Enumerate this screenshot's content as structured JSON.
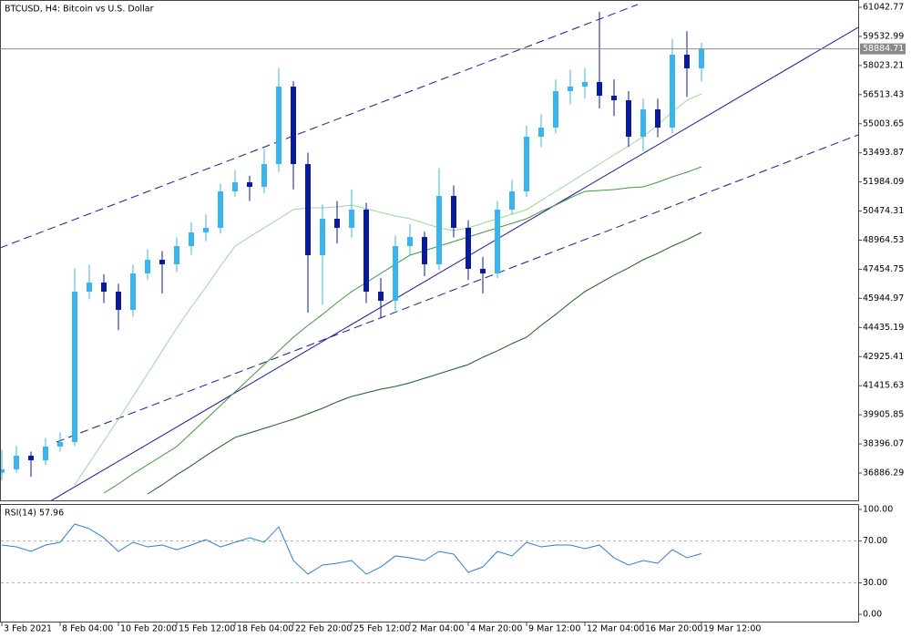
{
  "chart_data": [
    {
      "type": "candlestick",
      "title": "BTCUSD, H4:  Bitcoin vs U.S. Dollar",
      "categories": [
        "3 Feb 2021",
        null,
        null,
        null,
        "8 Feb 04:00",
        null,
        null,
        null,
        "10 Feb 20:00",
        null,
        null,
        null,
        "15 Feb 12:00",
        null,
        null,
        null,
        "18 Feb 04:00",
        null,
        null,
        null,
        "22 Feb 20:00",
        null,
        null,
        null,
        "25 Feb 12:00",
        null,
        null,
        null,
        "2 Mar 04:00",
        null,
        null,
        null,
        "4 Mar 20:00",
        null,
        null,
        null,
        "9 Mar 12:00",
        null,
        null,
        null,
        "12 Mar 04:00",
        null,
        null,
        null,
        "16 Mar 20:00",
        null,
        null,
        null,
        "19 Mar 12:00"
      ],
      "open": [
        36900,
        37077,
        37786,
        37550,
        38259,
        38495,
        46295,
        46767,
        46295,
        45350,
        47240,
        47949,
        47713,
        48658,
        49367,
        49604,
        51494,
        51967,
        51731,
        52912,
        56930,
        52912,
        48185,
        50076,
        49604,
        50549,
        46295,
        45822,
        48658,
        49131,
        47713,
        51258,
        49604,
        47476,
        47240,
        50549,
        51494,
        54330,
        54803,
        56694,
        56930,
        57167,
        56458,
        56221,
        54330,
        55748,
        54803,
        58585,
        57876
      ],
      "high": [
        38100,
        38300,
        38000,
        38700,
        39000,
        47500,
        47700,
        47200,
        46700,
        47700,
        48500,
        48400,
        49100,
        49900,
        50300,
        51900,
        52600,
        52300,
        53700,
        57900,
        57200,
        53500,
        50800,
        51000,
        51600,
        50900,
        47000,
        49200,
        49800,
        49400,
        52700,
        51800,
        50000,
        48100,
        51000,
        52100,
        54900,
        55500,
        57300,
        57800,
        57900,
        60800,
        57300,
        56700,
        56300,
        56300,
        59400,
        59800,
        59200
      ],
      "low": [
        36500,
        36900,
        36700,
        37300,
        38000,
        38300,
        45900,
        45700,
        44300,
        45000,
        46900,
        46200,
        47300,
        48200,
        48900,
        49300,
        51200,
        51000,
        51400,
        52500,
        51600,
        45200,
        45600,
        48800,
        49100,
        45700,
        44900,
        45300,
        48200,
        47100,
        47400,
        49100,
        46900,
        46200,
        47000,
        50300,
        51200,
        53800,
        54500,
        56000,
        56300,
        55800,
        55400,
        53800,
        53600,
        54300,
        54500,
        56400,
        57200
      ],
      "close": [
        37077,
        37786,
        37550,
        38259,
        38495,
        46295,
        46767,
        46295,
        45350,
        47240,
        47949,
        47713,
        48658,
        49367,
        49604,
        51494,
        51967,
        51731,
        52912,
        56930,
        52912,
        48185,
        50076,
        49604,
        50549,
        46295,
        45822,
        48658,
        49131,
        47713,
        51258,
        49604,
        47476,
        47240,
        50549,
        51494,
        54330,
        54803,
        56694,
        56930,
        57167,
        56458,
        56221,
        54330,
        55748,
        54803,
        58585,
        57876,
        58884.71
      ],
      "up_color": "#38b4ee",
      "down_color": "#0a1aa0",
      "series": [
        {
          "color": "#9ad89a",
          "values": [
            null,
            null,
            null,
            null,
            null,
            36273,
            37408,
            38542,
            39677,
            40859,
            42040,
            43222,
            44404,
            45491,
            46531,
            47618,
            48658,
            49131,
            49604,
            50076,
            50549,
            50644,
            50644,
            50691,
            50785,
            50596,
            50407,
            50218,
            50076,
            49840,
            49604,
            49462,
            49604,
            49840,
            50076,
            50313,
            50549,
            51022,
            51494,
            51967,
            52440,
            52912,
            53385,
            53858,
            54330,
            54945,
            55607,
            56221,
            56552
          ]
        },
        {
          "color": "#3f9a3f",
          "values": [
            null,
            null,
            null,
            null,
            null,
            null,
            null,
            35847,
            36320,
            36840,
            37313,
            37786,
            38259,
            38968,
            39677,
            40386,
            41095,
            41804,
            42513,
            43222,
            43931,
            44545,
            45114,
            45727,
            46295,
            46767,
            47240,
            47713,
            48185,
            48422,
            48658,
            48895,
            49131,
            49367,
            49604,
            49840,
            50076,
            50455,
            50785,
            51163,
            51494,
            51541,
            51588,
            51683,
            51731,
            51967,
            52251,
            52487,
            52770
          ]
        },
        {
          "color": "#1d5e1d",
          "values": [
            null,
            null,
            null,
            null,
            null,
            null,
            null,
            null,
            null,
            null,
            35799,
            36273,
            36793,
            37266,
            37786,
            38259,
            38732,
            38968,
            39204,
            39441,
            39677,
            39960,
            40244,
            40575,
            40859,
            41048,
            41237,
            41379,
            41568,
            41804,
            42040,
            42277,
            42513,
            42891,
            43222,
            43600,
            43931,
            44545,
            45114,
            45727,
            46295,
            46720,
            47146,
            47524,
            47949,
            48280,
            48658,
            48990,
            49367
          ]
        }
      ],
      "ylim": [
        35421,
        61421
      ],
      "yticks": [
        61042.77,
        59532.99,
        58023.21,
        56513.43,
        55003.65,
        53493.87,
        51984.09,
        50474.31,
        48964.53,
        47454.75,
        45944.97,
        44435.19,
        42925.41,
        41415.63,
        39905.85,
        38396.07,
        36886.29
      ],
      "grid": false
    },
    {
      "type": "line",
      "title": "RSI(14) 57.96",
      "color": "#2a7fd4",
      "values": [
        66.1,
        64.3,
        60,
        66.1,
        68.7,
        86.1,
        81.7,
        73,
        60,
        68.7,
        64.3,
        66.1,
        61.7,
        66.1,
        71.3,
        64.3,
        68.7,
        73,
        68.7,
        83.5,
        51.3,
        38.3,
        47,
        48.7,
        51.3,
        38.3,
        45.2,
        55.7,
        53.9,
        51.3,
        60,
        57.4,
        40,
        45.2,
        60,
        55.7,
        68.7,
        64.3,
        66.1,
        66.1,
        62.6,
        66.1,
        53.9,
        47,
        51.3,
        48.7,
        61.7,
        53.9,
        57.96
      ],
      "ylim": [
        -7.8,
        105.2
      ],
      "yticks": [
        {
          "value": 100,
          "label": "100.00"
        },
        {
          "value": 70,
          "label": "70.00"
        },
        {
          "value": 30,
          "label": "30.00"
        },
        {
          "value": 0,
          "label": "0.00"
        }
      ],
      "levels": [
        70,
        30
      ]
    }
  ]
}
